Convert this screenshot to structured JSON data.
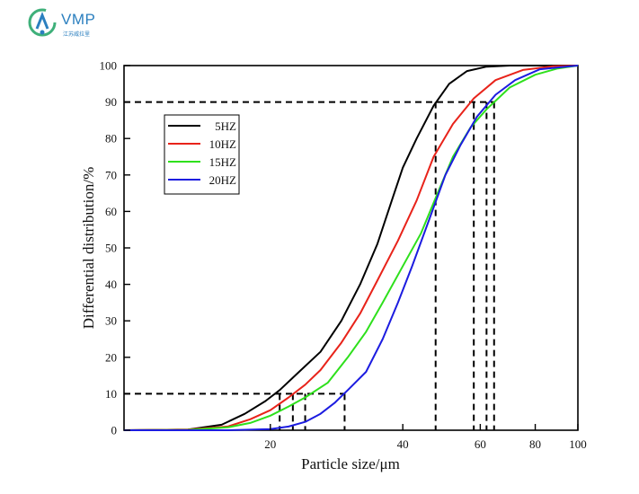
{
  "logo": {
    "name": "VMP",
    "subtitle": "江苏威拉里"
  },
  "colors": {
    "series_5hz": "#000000",
    "series_10hz": "#e8231a",
    "series_15hz": "#2ee01c",
    "series_20hz": "#1c1ce0",
    "logo_blue": "#2b7fbf",
    "logo_green": "#3fb07a"
  },
  "chart_data": {
    "type": "line",
    "title": "",
    "xlabel": "Particle size/μm",
    "ylabel": "Differential distribution/%",
    "xscale": "log",
    "xlim": [
      9.3,
      100
    ],
    "ylim": [
      0,
      100
    ],
    "x_ticks": [
      20,
      40,
      60,
      80,
      100
    ],
    "x_tick_labels": [
      "20",
      "40",
      "60",
      "80",
      "100"
    ],
    "y_ticks": [
      0,
      10,
      20,
      30,
      40,
      50,
      60,
      70,
      80,
      90,
      100
    ],
    "y_tick_labels": [
      "0",
      "10",
      "20",
      "30",
      "40",
      "50",
      "60",
      "70",
      "80",
      "90",
      "100"
    ],
    "grid": false,
    "legend_position": "top-left",
    "series": [
      {
        "name": "5HZ",
        "color": "#000000",
        "points": [
          [
            9.3,
            0
          ],
          [
            13,
            0.2
          ],
          [
            15.5,
            1.5
          ],
          [
            17.5,
            4.5
          ],
          [
            19.5,
            8
          ],
          [
            21,
            11
          ],
          [
            23,
            15.5
          ],
          [
            26,
            21.5
          ],
          [
            29,
            30
          ],
          [
            32,
            40
          ],
          [
            35,
            51
          ],
          [
            38,
            64
          ],
          [
            40,
            72
          ],
          [
            43,
            80
          ],
          [
            47,
            89
          ],
          [
            51,
            95
          ],
          [
            56,
            98.5
          ],
          [
            62,
            99.7
          ],
          [
            70,
            100
          ],
          [
            100,
            100
          ]
        ]
      },
      {
        "name": "10HZ",
        "color": "#e8231a",
        "points": [
          [
            9.3,
            0
          ],
          [
            13,
            0.2
          ],
          [
            16,
            1
          ],
          [
            18,
            3
          ],
          [
            20,
            5.5
          ],
          [
            22,
            9
          ],
          [
            24,
            12.5
          ],
          [
            26,
            16.5
          ],
          [
            29,
            24
          ],
          [
            32,
            32
          ],
          [
            35,
            41
          ],
          [
            39,
            52
          ],
          [
            43,
            63
          ],
          [
            47,
            75
          ],
          [
            52,
            84
          ],
          [
            58,
            91
          ],
          [
            65,
            96
          ],
          [
            75,
            98.8
          ],
          [
            88,
            99.8
          ],
          [
            100,
            100
          ]
        ]
      },
      {
        "name": "15HZ",
        "color": "#2ee01c",
        "points": [
          [
            9.3,
            0
          ],
          [
            13,
            0.1
          ],
          [
            16,
            0.8
          ],
          [
            18,
            2
          ],
          [
            20,
            4
          ],
          [
            22,
            6.5
          ],
          [
            24,
            9
          ],
          [
            27,
            13
          ],
          [
            30,
            20
          ],
          [
            33,
            27
          ],
          [
            36,
            35
          ],
          [
            40,
            45
          ],
          [
            44,
            54
          ],
          [
            48,
            65
          ],
          [
            52,
            75
          ],
          [
            57,
            83
          ],
          [
            62,
            88
          ],
          [
            70,
            94
          ],
          [
            80,
            97.5
          ],
          [
            90,
            99.2
          ],
          [
            100,
            100
          ]
        ]
      },
      {
        "name": "20HZ",
        "color": "#1c1ce0",
        "points": [
          [
            9.3,
            0
          ],
          [
            16,
            0
          ],
          [
            20,
            0.3
          ],
          [
            22,
            1
          ],
          [
            24,
            2.3
          ],
          [
            26,
            4.5
          ],
          [
            28,
            7.5
          ],
          [
            30,
            11
          ],
          [
            33,
            16
          ],
          [
            36,
            25
          ],
          [
            39,
            35
          ],
          [
            42,
            45
          ],
          [
            46,
            58
          ],
          [
            50,
            70
          ],
          [
            54,
            78
          ],
          [
            59,
            86
          ],
          [
            65,
            92
          ],
          [
            72,
            96
          ],
          [
            82,
            99
          ],
          [
            100,
            100
          ]
        ]
      }
    ],
    "reference_lines": {
      "d10": [
        {
          "series": "5HZ",
          "x": 21,
          "y": 10
        },
        {
          "series": "10HZ",
          "x": 22.5,
          "y": 10
        },
        {
          "series": "15HZ",
          "x": 24,
          "y": 10
        },
        {
          "series": "20HZ",
          "x": 29.5,
          "y": 10
        }
      ],
      "d90": [
        {
          "series": "5HZ",
          "x": 47.5,
          "y": 90
        },
        {
          "series": "10HZ",
          "x": 58,
          "y": 90
        },
        {
          "series": "15HZ",
          "x": 64.5,
          "y": 90
        },
        {
          "series": "20HZ",
          "x": 62,
          "y": 90
        }
      ]
    }
  }
}
